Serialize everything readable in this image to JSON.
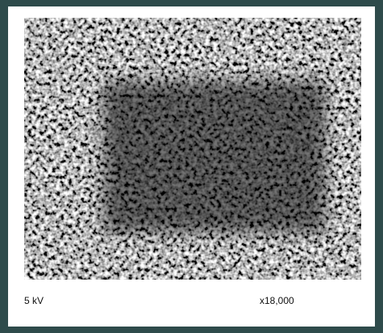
{
  "micrograph": {
    "voltage": "5 kV",
    "magnification": "x18,000"
  }
}
